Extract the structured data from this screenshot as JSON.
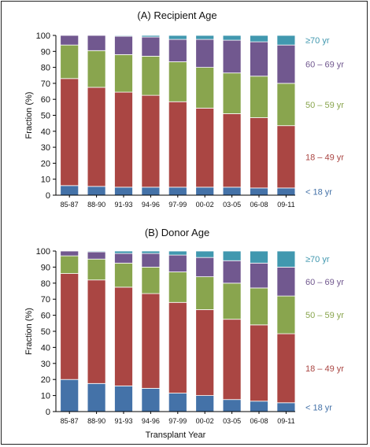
{
  "chart_data": [
    {
      "type": "bar",
      "stacked": true,
      "title": "(A) Recipient Age",
      "ylabel": "Fraction (%)",
      "xlabel": "",
      "ylim": [
        0,
        100
      ],
      "yticks": [
        0,
        10,
        20,
        30,
        40,
        50,
        60,
        70,
        80,
        90,
        100
      ],
      "grid": false,
      "legend": "right",
      "categories": [
        "85-87",
        "88-90",
        "91-93",
        "94-96",
        "97-99",
        "00-02",
        "03-05",
        "06-08",
        "09-11"
      ],
      "series": [
        {
          "name": "< 18 yr",
          "color": "#4472a8",
          "values": [
            6,
            5.5,
            5,
            5,
            5,
            5,
            5,
            4.5,
            4.5
          ]
        },
        {
          "name": "18 – 49 yr",
          "color": "#aa4643",
          "values": [
            67,
            62,
            59.5,
            57.5,
            53.5,
            49.5,
            46,
            44,
            39
          ]
        },
        {
          "name": "50 – 59 yr",
          "color": "#89a54e",
          "values": [
            21,
            23,
            23.5,
            24.5,
            25,
            25.5,
            25.5,
            26,
            26.5
          ]
        },
        {
          "name": "60 – 69 yr",
          "color": "#71588f",
          "values": [
            6,
            9.5,
            11.5,
            12,
            14,
            17.5,
            20.5,
            21.5,
            24
          ]
        },
        {
          "name": "≥70 yr",
          "color": "#4198af",
          "values": [
            0,
            0,
            0.5,
            1,
            2.5,
            2.5,
            3,
            4,
            6
          ]
        }
      ]
    },
    {
      "type": "bar",
      "stacked": true,
      "title": "(B) Donor Age",
      "ylabel": "Fraction (%)",
      "xlabel": "Transplant Year",
      "ylim": [
        0,
        100
      ],
      "yticks": [
        0,
        10,
        20,
        30,
        40,
        50,
        60,
        70,
        80,
        90,
        100
      ],
      "grid": false,
      "legend": "right",
      "categories": [
        "85-87",
        "88-90",
        "91-93",
        "94-96",
        "97-99",
        "00-02",
        "03-05",
        "06-08",
        "09-11"
      ],
      "series": [
        {
          "name": "< 18 yr",
          "color": "#4472a8",
          "values": [
            20,
            17.5,
            16,
            14.5,
            11.5,
            10,
            7.5,
            6.5,
            5.5
          ]
        },
        {
          "name": "18 – 49 yr",
          "color": "#aa4643",
          "values": [
            66,
            64.5,
            61.5,
            59,
            56.5,
            53.5,
            50,
            47.5,
            43
          ]
        },
        {
          "name": "50 – 59 yr",
          "color": "#89a54e",
          "values": [
            11,
            13,
            15,
            16.5,
            19,
            20.5,
            22.5,
            23,
            23.5
          ]
        },
        {
          "name": "60 – 69 yr",
          "color": "#71588f",
          "values": [
            3,
            4.5,
            6,
            8.5,
            10.5,
            12,
            14,
            15.5,
            18
          ]
        },
        {
          "name": "≥70 yr",
          "color": "#4198af",
          "values": [
            0,
            0.5,
            1.5,
            1.5,
            2.5,
            4,
            6,
            7.5,
            10
          ]
        }
      ]
    }
  ]
}
